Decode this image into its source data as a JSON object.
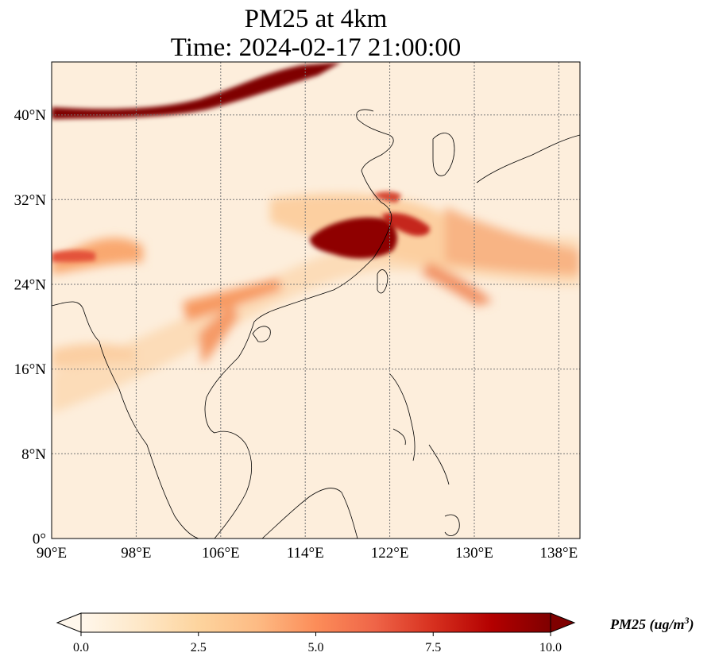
{
  "title": {
    "line1": "PM25 at 4km",
    "line2": "Time: 2024-02-17 21:00:00"
  },
  "map": {
    "extent": {
      "lon": [
        90,
        140
      ],
      "lat": [
        0,
        45
      ]
    },
    "gridlines": "dotted",
    "lon_ticks": [
      {
        "value": 90,
        "label": "90°E"
      },
      {
        "value": 98,
        "label": "98°E"
      },
      {
        "value": 106,
        "label": "106°E"
      },
      {
        "value": 114,
        "label": "114°E"
      },
      {
        "value": 122,
        "label": "122°E"
      },
      {
        "value": 130,
        "label": "130°E"
      },
      {
        "value": 138,
        "label": "138°E"
      }
    ],
    "lat_ticks": [
      {
        "value": 0,
        "label": "0°"
      },
      {
        "value": 8,
        "label": "8°N"
      },
      {
        "value": 16,
        "label": "16°N"
      },
      {
        "value": 24,
        "label": "24°N"
      },
      {
        "value": 32,
        "label": "32°N"
      },
      {
        "value": 40,
        "label": "40°N"
      }
    ]
  },
  "colorbar": {
    "colormap": "OrRd",
    "colors": [
      "#fff7ec",
      "#fee8c8",
      "#fdd49e",
      "#fdbb84",
      "#fc8d59",
      "#ef6548",
      "#d7301f",
      "#b30000",
      "#7f0000"
    ],
    "extend": "both",
    "ticks": [
      "0.0",
      "2.5",
      "5.0",
      "7.5",
      "10.0"
    ],
    "label_name": "PM25 (ug/m",
    "label_exp": "3",
    "label_close": ")"
  }
}
